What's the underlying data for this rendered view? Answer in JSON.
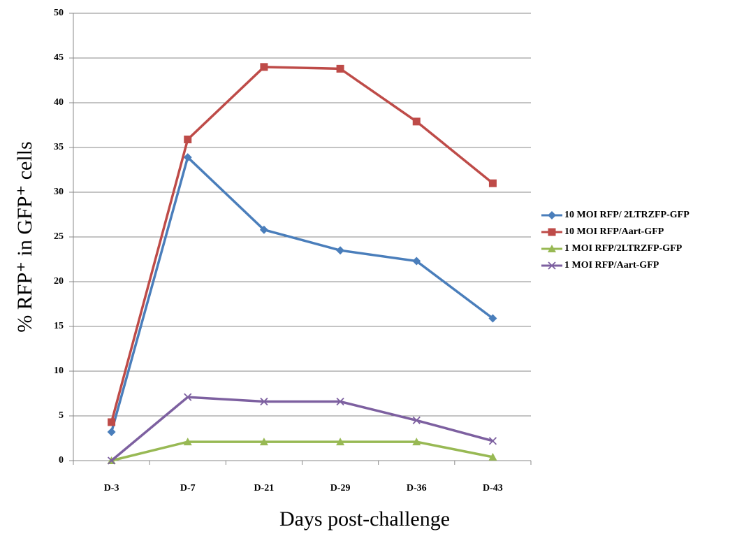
{
  "chart_data": {
    "type": "line",
    "x_label": "Days post-challenge",
    "y_label": "% RFP⁺ in GFP⁺ cells",
    "categories": [
      "D-3",
      "D-7",
      "D-21",
      "D-29",
      "D-36",
      "D-43"
    ],
    "series": [
      {
        "name": "10 MOI  RFP/ 2LTRZFP-GFP",
        "color": "#4a7ebb",
        "marker": "diamond",
        "values": [
          3.2,
          33.9,
          25.8,
          23.5,
          22.3,
          15.9
        ]
      },
      {
        "name": "10 MOI  RFP/Aart-GFP",
        "color": "#be4b48",
        "marker": "square",
        "values": [
          4.3,
          35.9,
          44.0,
          43.8,
          37.9,
          31.0
        ]
      },
      {
        "name": "1 MOI  RFP/2LTRZFP-GFP",
        "color": "#98b954",
        "marker": "triangle",
        "values": [
          0,
          2.1,
          2.1,
          2.1,
          2.1,
          0.4
        ]
      },
      {
        "name": "1 MOI  RFP/Aart-GFP",
        "color": "#7d60a0",
        "marker": "x",
        "values": [
          0,
          7.1,
          6.6,
          6.6,
          4.5,
          2.2
        ]
      }
    ],
    "ylim": [
      0,
      50
    ],
    "yticks": [
      0,
      5,
      10,
      15,
      20,
      25,
      30,
      35,
      40,
      45,
      50
    ],
    "grid": true,
    "legend": "right"
  }
}
